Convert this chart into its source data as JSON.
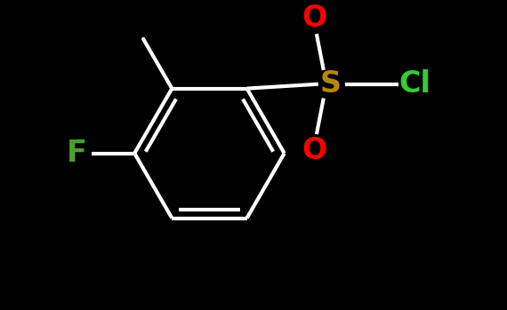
{
  "background_color": "#000000",
  "bond_color": "#ffffff",
  "bond_width": 3.0,
  "label_F": "F",
  "label_F_color": "#4a9e2f",
  "label_S": "S",
  "label_S_color": "#b8860b",
  "label_Cl": "Cl",
  "label_Cl_color": "#33cc33",
  "label_O": "O",
  "label_O_color": "#ff0000",
  "font_size": 20,
  "figsize": [
    5.7,
    3.49
  ],
  "dpi": 100
}
